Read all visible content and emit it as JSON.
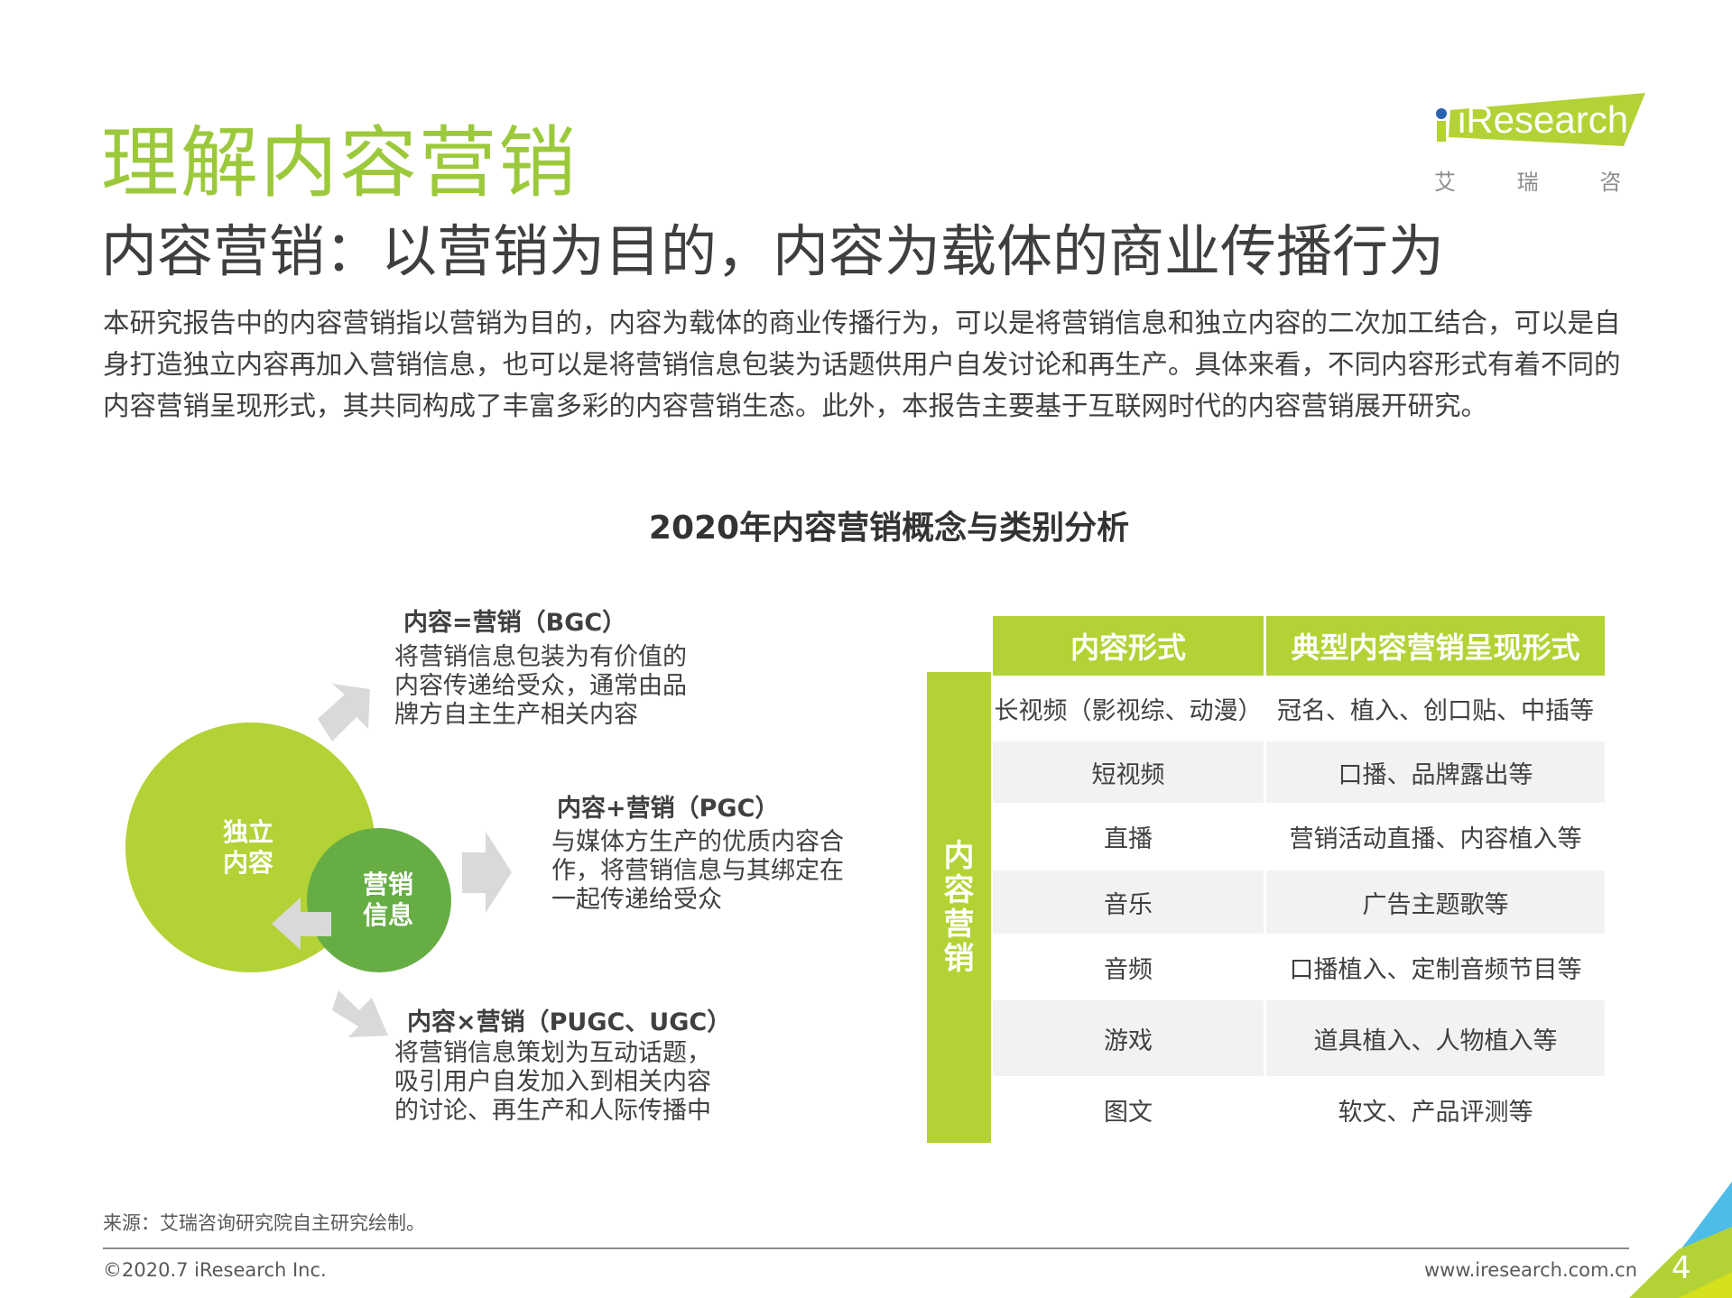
{
  "header": {
    "title": "理解内容营销",
    "subtitle": "内容营销：以营销为目的，内容为载体的商业传播行为",
    "logo": {
      "text": "iResearch",
      "chinese": "艾 瑞 咨 询"
    }
  },
  "intro": "本研究报告中的内容营销指以营销为目的，内容为载体的商业传播行为，可以是将营销信息和独立内容的二次加工结合，可以是自身打造独立内容再加入营销信息，也可以是将营销信息包装为话题供用户自发讨论和再生产。具体来看，不同内容形式有着不同的内容营销呈现形式，其共同构成了丰富多彩的内容营销生态。此外，本报告主要基于互联网时代的内容营销展开研究。",
  "chart_title": "2020年内容营销概念与类别分析",
  "diagram": {
    "big_circle": "独立\n内容",
    "small_circle": "营销\n信息",
    "colors": {
      "big": "#b3d235",
      "small": "#66ad44",
      "arrow": "#d9d9d9"
    },
    "modes": [
      {
        "title": "内容=营销（BGC）",
        "lines": [
          "将营销信息包装为有价值的",
          "内容传递给受众，通常由品",
          "牌方自主生产相关内容"
        ]
      },
      {
        "title": "内容+营销（PGC）",
        "lines": [
          "与媒体方生产的优质内容合",
          "作，将营销信息与其绑定在",
          "一起传递给受众"
        ]
      },
      {
        "title": "内容×营销（PUGC、UGC）",
        "lines": [
          "将营销信息策划为互动话题，",
          "吸引用户自发加入到相关内容",
          "的讨论、再生产和人际传播中"
        ]
      }
    ]
  },
  "table": {
    "side_label": "内容营销",
    "headers": [
      "内容形式",
      "典型内容营销呈现形式"
    ],
    "rows": [
      [
        "长视频（影视综、动漫）",
        "冠名、植入、创口贴、中插等"
      ],
      [
        "短视频",
        "口播、品牌露出等"
      ],
      [
        "直播",
        "营销活动直播、内容植入等"
      ],
      [
        "音乐",
        "广告主题歌等"
      ],
      [
        "音频",
        "口播植入、定制音频节目等"
      ],
      [
        "游戏",
        "道具植入、人物植入等"
      ],
      [
        "图文",
        "软文、产品评测等"
      ]
    ],
    "accent": "#b3d235"
  },
  "footer": {
    "source": "来源：艾瑞咨询研究院自主研究绘制。",
    "copyright": "©2020.7 iResearch Inc.",
    "url": "www.iresearch.com.cn",
    "page": "4"
  }
}
